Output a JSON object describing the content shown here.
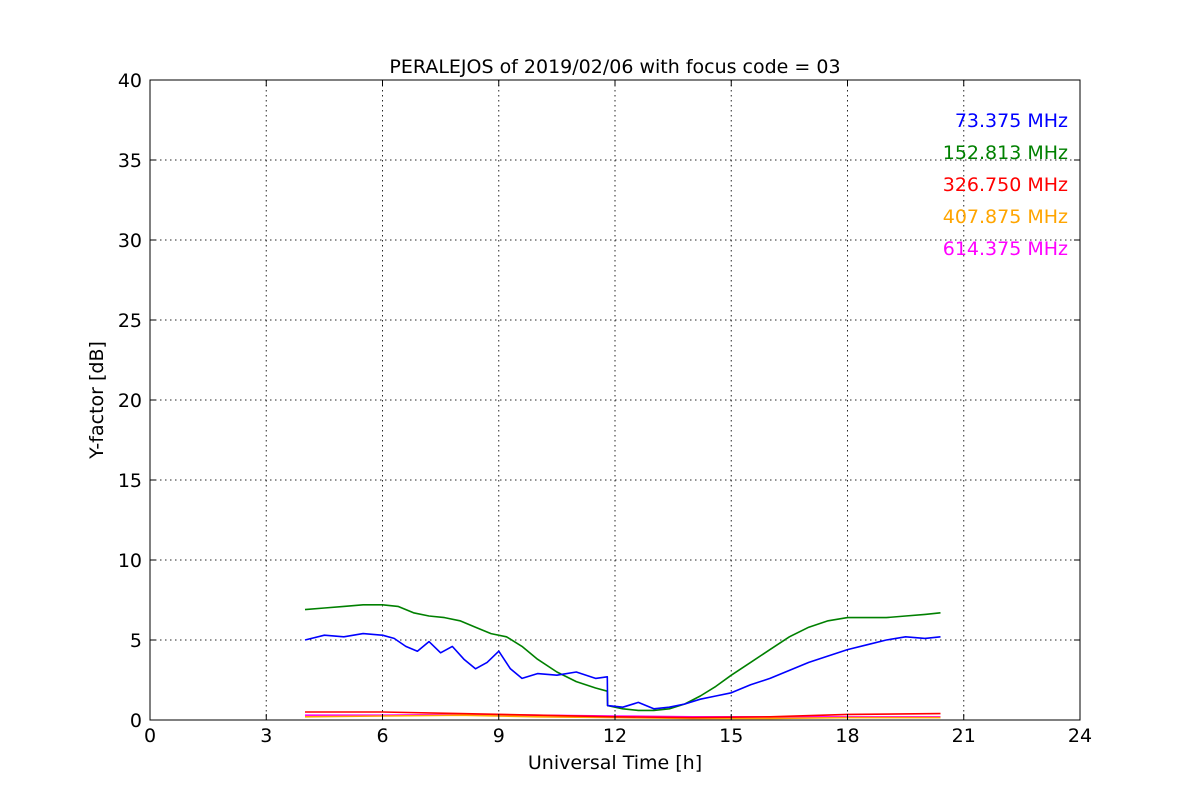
{
  "chart_data": {
    "type": "line",
    "title": "PERALEJOS of 2019/02/06 with focus code = 03",
    "xlabel": "Universal Time [h]",
    "ylabel": "Y-factor [dB]",
    "xlim": [
      0,
      24
    ],
    "ylim": [
      0,
      40
    ],
    "xticks": [
      0,
      3,
      6,
      9,
      12,
      15,
      18,
      21,
      24
    ],
    "yticks": [
      0,
      5,
      10,
      15,
      20,
      25,
      30,
      35,
      40
    ],
    "xtick_labels": [
      "0",
      "3",
      "6",
      "9",
      "12",
      "15",
      "18",
      "21",
      "24"
    ],
    "ytick_labels": [
      "0",
      "5",
      "10",
      "15",
      "20",
      "25",
      "30",
      "35",
      "40"
    ],
    "grid": true,
    "legend_position": "top-right",
    "series": [
      {
        "name": "73.375 MHz",
        "color": "#0000ff",
        "x": [
          4.0,
          4.5,
          5.0,
          5.5,
          6.0,
          6.3,
          6.6,
          6.9,
          7.2,
          7.5,
          7.8,
          8.1,
          8.4,
          8.7,
          9.0,
          9.3,
          9.6,
          10.0,
          10.5,
          11.0,
          11.5,
          11.8,
          11.81,
          12.2,
          12.6,
          13.0,
          13.4,
          13.8,
          14.2,
          14.6,
          15.0,
          15.5,
          16.0,
          16.5,
          17.0,
          17.5,
          18.0,
          18.5,
          19.0,
          19.5,
          20.0,
          20.4
        ],
        "values": [
          5.0,
          5.3,
          5.2,
          5.4,
          5.3,
          5.1,
          4.6,
          4.3,
          4.9,
          4.2,
          4.6,
          3.8,
          3.2,
          3.6,
          4.3,
          3.2,
          2.6,
          2.9,
          2.8,
          3.0,
          2.6,
          2.7,
          0.9,
          0.8,
          1.1,
          0.7,
          0.8,
          1.0,
          1.3,
          1.5,
          1.7,
          2.2,
          2.6,
          3.1,
          3.6,
          4.0,
          4.4,
          4.7,
          5.0,
          5.2,
          5.1,
          5.2
        ]
      },
      {
        "name": "152.813 MHz",
        "color": "#008000",
        "x": [
          4.0,
          4.5,
          5.0,
          5.5,
          6.0,
          6.4,
          6.8,
          7.2,
          7.6,
          8.0,
          8.4,
          8.8,
          9.2,
          9.6,
          10.0,
          10.5,
          11.0,
          11.5,
          11.8,
          11.81,
          12.2,
          12.6,
          13.0,
          13.4,
          13.8,
          14.2,
          14.6,
          15.0,
          15.5,
          16.0,
          16.5,
          17.0,
          17.5,
          18.0,
          18.5,
          19.0,
          19.5,
          20.0,
          20.4
        ],
        "values": [
          6.9,
          7.0,
          7.1,
          7.2,
          7.2,
          7.1,
          6.7,
          6.5,
          6.4,
          6.2,
          5.8,
          5.4,
          5.2,
          4.6,
          3.8,
          3.0,
          2.4,
          2.0,
          1.8,
          0.9,
          0.7,
          0.6,
          0.6,
          0.7,
          1.0,
          1.5,
          2.1,
          2.8,
          3.6,
          4.4,
          5.2,
          5.8,
          6.2,
          6.4,
          6.4,
          6.4,
          6.5,
          6.6,
          6.7
        ]
      },
      {
        "name": "326.750 MHz",
        "color": "#ff0000",
        "x": [
          4.0,
          6.0,
          8.0,
          10.0,
          12.0,
          14.0,
          16.0,
          18.0,
          20.4
        ],
        "values": [
          0.5,
          0.5,
          0.4,
          0.3,
          0.2,
          0.15,
          0.2,
          0.35,
          0.4
        ]
      },
      {
        "name": "407.875 MHz",
        "color": "#ffa500",
        "x": [
          4.0,
          6.0,
          8.0,
          10.0,
          12.0,
          14.0,
          16.0,
          18.0,
          20.4
        ],
        "values": [
          0.2,
          0.25,
          0.3,
          0.2,
          0.15,
          0.1,
          0.1,
          0.15,
          0.15
        ]
      },
      {
        "name": "614.375 MHz",
        "color": "#ff00ff",
        "x": [
          4.0,
          6.0,
          8.0,
          10.0,
          12.0,
          14.0,
          16.0,
          18.0,
          20.4
        ],
        "values": [
          0.3,
          0.3,
          0.35,
          0.3,
          0.25,
          0.2,
          0.2,
          0.2,
          0.2
        ]
      }
    ]
  }
}
